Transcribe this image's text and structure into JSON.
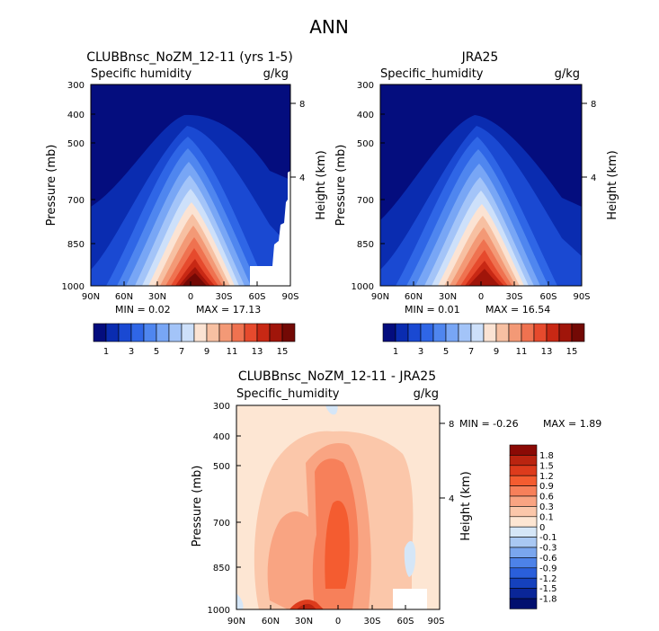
{
  "figure_title": "ANN",
  "chart_data": [
    {
      "type": "heatmap",
      "title": "CLUBBnsc_NoZM_12-11 (yrs 1-5)",
      "variable": "Specific humidity",
      "units": "g/kg",
      "ylabel": "Pressure (mb)",
      "ylabel_right": "Height (km)",
      "xticks": [
        "90N",
        "60N",
        "30N",
        "0",
        "30S",
        "60S",
        "90S"
      ],
      "yticks": [
        "300",
        "400",
        "500",
        "700",
        "850",
        "1000"
      ],
      "yticks_right": [
        "8",
        "4"
      ],
      "min_label": "MIN = 0.02",
      "max_label": "MAX = 17.13",
      "min": 0.02,
      "max": 17.13,
      "levels": [
        1,
        2,
        3,
        4,
        5,
        6,
        7,
        8,
        9,
        10,
        11,
        12,
        13,
        14,
        15
      ],
      "colorbar_labels": [
        "1",
        "3",
        "5",
        "7",
        "9",
        "11",
        "13",
        "15"
      ]
    },
    {
      "type": "heatmap",
      "title": "JRA25",
      "variable": "Specific_humidity",
      "units": "g/kg",
      "ylabel": "Pressure (mb)",
      "ylabel_right": "Height (km)",
      "xticks": [
        "90N",
        "60N",
        "30N",
        "0",
        "30S",
        "60S",
        "90S"
      ],
      "yticks": [
        "300",
        "400",
        "500",
        "700",
        "850",
        "1000"
      ],
      "yticks_right": [
        "8",
        "4"
      ],
      "min_label": "MIN = 0.01",
      "max_label": "MAX = 16.54",
      "min": 0.01,
      "max": 16.54,
      "levels": [
        1,
        2,
        3,
        4,
        5,
        6,
        7,
        8,
        9,
        10,
        11,
        12,
        13,
        14,
        15
      ],
      "colorbar_labels": [
        "1",
        "3",
        "5",
        "7",
        "9",
        "11",
        "13",
        "15"
      ]
    },
    {
      "type": "heatmap",
      "title": "CLUBBnsc_NoZM_12-11 - JRA25",
      "variable": "Specific_humidity",
      "units": "g/kg",
      "ylabel": "Pressure (mb)",
      "ylabel_right": "Height (km)",
      "xticks": [
        "90N",
        "60N",
        "30N",
        "0",
        "30S",
        "60S",
        "90S"
      ],
      "yticks": [
        "300",
        "400",
        "500",
        "700",
        "850",
        "1000"
      ],
      "yticks_right": [
        "8",
        "4"
      ],
      "min_label": "MIN = -0.26",
      "max_label": "MAX = 1.89",
      "min": -0.26,
      "max": 1.89,
      "levels": [
        -1.8,
        -1.5,
        -1.2,
        -0.9,
        -0.6,
        -0.3,
        -0.1,
        0,
        0.1,
        0.3,
        0.6,
        0.9,
        1.2,
        1.5,
        1.8
      ],
      "colorbar_labels": [
        "1.8",
        "1.5",
        "1.2",
        "0.9",
        "0.6",
        "0.3",
        "0.1",
        "0",
        "-0.1",
        "-0.3",
        "-0.6",
        "-0.9",
        "-1.2",
        "-1.5",
        "-1.8"
      ]
    }
  ],
  "colors": {
    "abs_scale": [
      "#040d7e",
      "#0a2cb0",
      "#1a49d2",
      "#2f66e6",
      "#4f86ef",
      "#78a6f5",
      "#a3c4f8",
      "#cde0fa",
      "#fbe3d3",
      "#f7c0a2",
      "#f39976",
      "#ef7250",
      "#e64a2d",
      "#c82814",
      "#a0150a",
      "#730905"
    ],
    "diff_scale": [
      "#8b0a05",
      "#ba2410",
      "#dd3b1c",
      "#f45c30",
      "#f7805a",
      "#f9a482",
      "#fbc7aa",
      "#fde6d3",
      "#d5e6f7",
      "#a9c8f3",
      "#7aa6ee",
      "#4d82e8",
      "#2a5fdb",
      "#1541bd",
      "#0a2698",
      "#02106f"
    ]
  }
}
